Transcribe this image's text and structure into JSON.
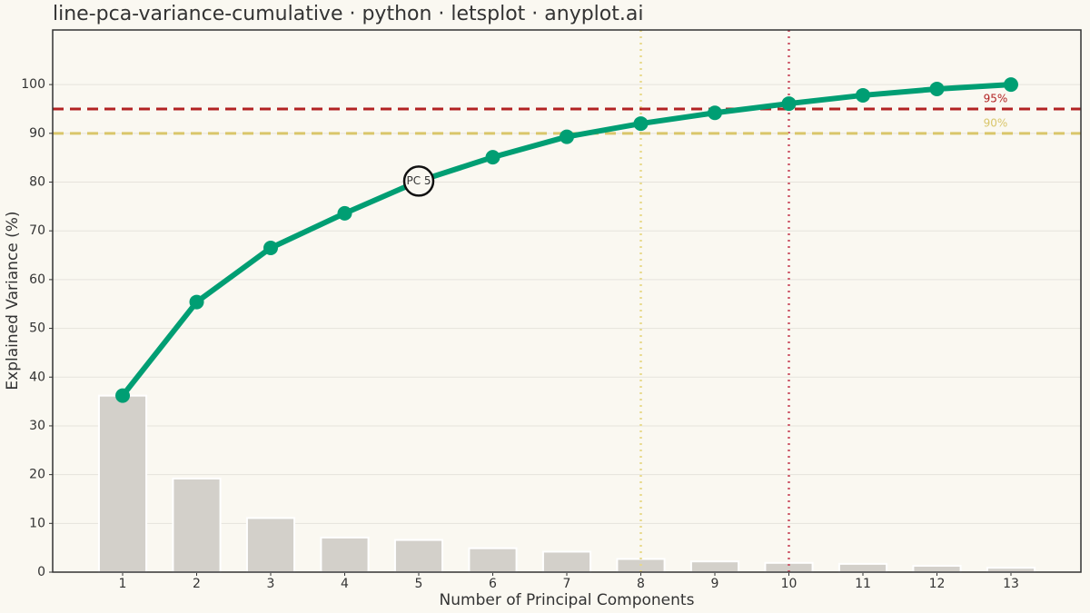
{
  "chart_data": {
    "type": "bar-line",
    "title": "line-pca-variance-cumulative · python · letsplot · anyplot.ai",
    "x_label": "Number of Principal Components",
    "y_label": "Explained Variance (%)",
    "x": [
      1,
      2,
      3,
      4,
      5,
      6,
      7,
      8,
      9,
      10,
      11,
      12,
      13
    ],
    "series": [
      {
        "kind": "bar",
        "color": "#d3d0ca",
        "values": [
          36.2,
          19.2,
          11.1,
          7.1,
          6.6,
          4.9,
          4.2,
          2.7,
          2.2,
          1.9,
          1.7,
          1.3,
          0.9
        ]
      },
      {
        "kind": "line",
        "color": "#009e73",
        "values": [
          36.2,
          55.4,
          66.5,
          73.6,
          80.2,
          85.1,
          89.3,
          92.0,
          94.2,
          96.1,
          97.8,
          99.1,
          100
        ]
      }
    ],
    "thresholds": [
      {
        "value": 95,
        "label": "95%",
        "color": "#b22222"
      },
      {
        "value": 90,
        "label": "90%",
        "color": "#d9c66b"
      }
    ],
    "vlines": [
      {
        "value": 8,
        "color": "#e8d98a"
      },
      {
        "value": 10,
        "color": "#cc5566"
      }
    ],
    "annotations": [
      {
        "x": 5,
        "text": "PC 5"
      }
    ],
    "xlim": [
      0.055,
      13.945
    ],
    "ylim": [
      0,
      111.2
    ],
    "xticks": [
      1,
      2,
      3,
      4,
      5,
      6,
      7,
      8,
      9,
      10,
      11,
      12,
      13
    ],
    "yticks": [
      0,
      10,
      20,
      30,
      40,
      50,
      60,
      70,
      80,
      90,
      100
    ],
    "grid": true
  }
}
